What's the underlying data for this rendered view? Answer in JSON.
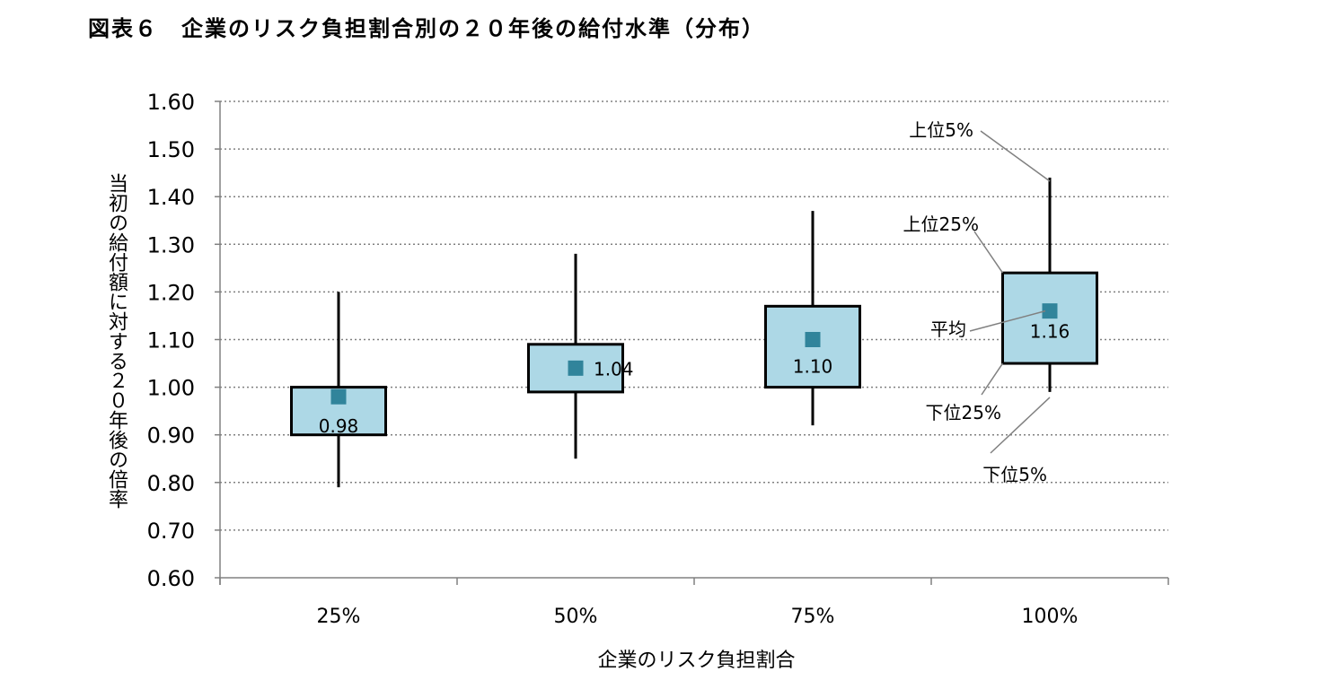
{
  "title": "図表６　企業のリスク負担割合別の２０年後の給付水準（分布）",
  "chart_data": {
    "type": "boxplot",
    "title": "図表６　企業のリスク負担割合別の２０年後の給付水準（分布）",
    "xlabel": "企業のリスク負担割合",
    "ylabel": "当初の給付額に対する２０年後の倍率",
    "ylim": [
      0.6,
      1.6
    ],
    "yticks": [
      "0.60",
      "0.70",
      "0.80",
      "0.90",
      "1.00",
      "1.10",
      "1.20",
      "1.30",
      "1.40",
      "1.50",
      "1.60"
    ],
    "grid": "horizontal-dotted",
    "categories": [
      "25%",
      "50%",
      "75%",
      "100%"
    ],
    "series": [
      {
        "category": "25%",
        "p5": 0.79,
        "p25": 0.9,
        "mean": 0.98,
        "p75": 1.0,
        "p95": 1.2,
        "mean_label": "0.98"
      },
      {
        "category": "50%",
        "p5": 0.85,
        "p25": 0.99,
        "mean": 1.04,
        "p75": 1.09,
        "p95": 1.28,
        "mean_label": "1.04"
      },
      {
        "category": "75%",
        "p5": 0.92,
        "p25": 1.0,
        "mean": 1.1,
        "p75": 1.17,
        "p95": 1.37,
        "mean_label": "1.10"
      },
      {
        "category": "100%",
        "p5": 0.99,
        "p25": 1.05,
        "mean": 1.16,
        "p75": 1.24,
        "p95": 1.44,
        "mean_label": "1.16"
      }
    ],
    "annotations": {
      "p95": "上位5%",
      "p75": "上位25%",
      "mean": "平均",
      "p25": "下位25%",
      "p5": "下位5%"
    },
    "colors": {
      "box_fill": "#add8e6",
      "marker": "#31849b",
      "grid": "#808080",
      "leader": "#808080"
    }
  }
}
